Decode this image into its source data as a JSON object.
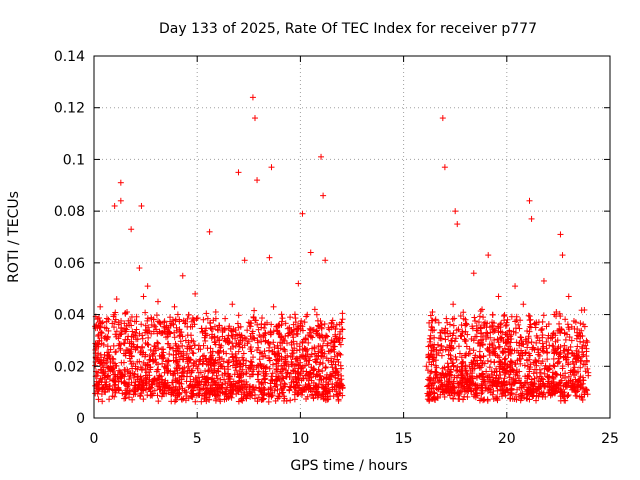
{
  "chart_data": {
    "type": "scatter",
    "title": "Day 133 of 2025, Rate Of TEC Index for receiver p777",
    "xlabel": "GPS time / hours",
    "ylabel": "ROTI / TECUs",
    "xlim": [
      0,
      25
    ],
    "ylim": [
      0,
      0.14
    ],
    "xticks": [
      0,
      5,
      10,
      15,
      20,
      25
    ],
    "xtick_labels": [
      "0",
      "5",
      "10",
      "15",
      "20",
      "25"
    ],
    "yticks": [
      0,
      0.02,
      0.04,
      0.06,
      0.08,
      0.1,
      0.12,
      0.14
    ],
    "ytick_labels": [
      "0",
      "0.02",
      "0.04",
      "0.06",
      "0.08",
      "0.1",
      "0.12",
      "0.14"
    ],
    "grid": true,
    "marker": "+",
    "color": "#ff0000",
    "data_gaps_hours": [
      [
        12.1,
        16.0
      ]
    ],
    "series": [
      {
        "name": "ROTI",
        "x": [
          0.1,
          0.2,
          0.3,
          0.4,
          0.5,
          0.6,
          0.7,
          0.8,
          0.9,
          1.0,
          1.1,
          1.2,
          1.3,
          1.3,
          1.4,
          1.5,
          1.6,
          1.7,
          1.8,
          1.9,
          2.0,
          2.1,
          2.2,
          2.3,
          2.4,
          2.5,
          2.5,
          2.6,
          2.7,
          2.8,
          2.9,
          3.0,
          3.1,
          3.3,
          3.5,
          3.7,
          3.9,
          4.1,
          4.3,
          4.5,
          4.7,
          4.9,
          5.1,
          5.3,
          5.5,
          5.6,
          5.7,
          5.9,
          6.1,
          6.3,
          6.5,
          6.7,
          6.9,
          7.0,
          7.1,
          7.3,
          7.5,
          7.7,
          7.8,
          7.9,
          8.1,
          8.3,
          8.5,
          8.6,
          8.7,
          8.9,
          9.1,
          9.3,
          9.5,
          9.7,
          9.9,
          10.1,
          10.3,
          10.5,
          10.6,
          10.7,
          10.9,
          11.0,
          11.1,
          11.2,
          11.3,
          11.5,
          11.7,
          11.9,
          16.2,
          16.4,
          16.6,
          16.8,
          16.9,
          17.0,
          17.2,
          17.4,
          17.5,
          17.6,
          17.8,
          18.0,
          18.2,
          18.4,
          18.6,
          18.8,
          19.0,
          19.1,
          19.2,
          19.4,
          19.6,
          19.8,
          20.0,
          20.2,
          20.4,
          20.6,
          20.8,
          21.0,
          21.1,
          21.2,
          21.4,
          21.6,
          21.8,
          22.0,
          22.2,
          22.4,
          22.6,
          22.7,
          22.8,
          23.0,
          23.2,
          23.4,
          23.6,
          23.8,
          23.9
        ],
        "y": [
          0.018,
          0.025,
          0.043,
          0.015,
          0.031,
          0.012,
          0.038,
          0.022,
          0.019,
          0.082,
          0.046,
          0.028,
          0.091,
          0.084,
          0.034,
          0.017,
          0.041,
          0.026,
          0.073,
          0.021,
          0.033,
          0.016,
          0.058,
          0.082,
          0.047,
          0.029,
          0.019,
          0.051,
          0.024,
          0.036,
          0.014,
          0.027,
          0.045,
          0.021,
          0.035,
          0.018,
          0.043,
          0.025,
          0.055,
          0.016,
          0.032,
          0.048,
          0.022,
          0.038,
          0.027,
          0.072,
          0.019,
          0.041,
          0.026,
          0.034,
          0.017,
          0.044,
          0.029,
          0.095,
          0.021,
          0.061,
          0.037,
          0.124,
          0.116,
          0.092,
          0.035,
          0.018,
          0.062,
          0.097,
          0.043,
          0.024,
          0.031,
          0.016,
          0.039,
          0.027,
          0.052,
          0.079,
          0.022,
          0.064,
          0.034,
          0.042,
          0.018,
          0.101,
          0.086,
          0.061,
          0.028,
          0.035,
          0.019,
          0.031,
          0.024,
          0.041,
          0.017,
          0.033,
          0.116,
          0.097,
          0.026,
          0.044,
          0.08,
          0.075,
          0.021,
          0.038,
          0.015,
          0.056,
          0.029,
          0.042,
          0.018,
          0.063,
          0.033,
          0.025,
          0.047,
          0.019,
          0.036,
          0.022,
          0.051,
          0.028,
          0.044,
          0.016,
          0.084,
          0.077,
          0.035,
          0.024,
          0.053,
          0.019,
          0.031,
          0.041,
          0.071,
          0.063,
          0.026,
          0.047,
          0.018,
          0.033,
          0.022,
          0.028,
          0.019
        ]
      }
    ]
  }
}
